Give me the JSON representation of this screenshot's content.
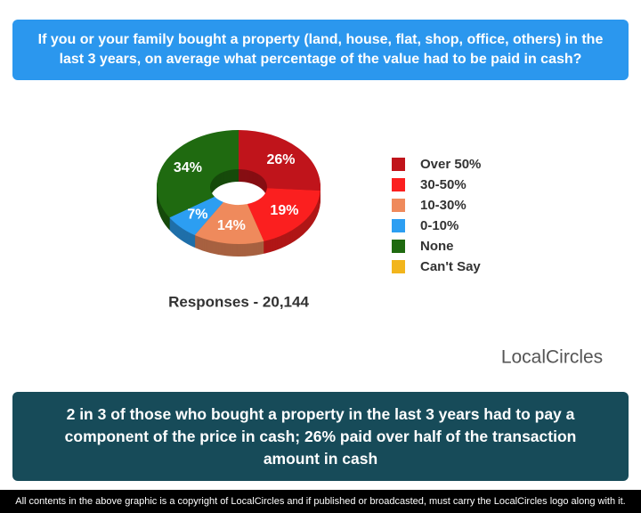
{
  "chart_data": {
    "type": "pie",
    "title": "If you or your family bought a property (land, house, flat, shop, office, others) in the last 3 years, on average what percentage of the value had to be paid in cash?",
    "categories": [
      "Over 50%",
      "30-50%",
      "10-30%",
      "0-10%",
      "None",
      "Can't Say"
    ],
    "values": [
      26,
      19,
      14,
      7,
      34,
      0
    ],
    "value_labels": [
      "26%",
      "19%",
      "14%",
      "7%",
      "34%",
      null
    ],
    "colors": [
      "#c0141b",
      "#fb1f1f",
      "#ef8a5c",
      "#2c9ef2",
      "#1f6a10",
      "#f2b51c"
    ],
    "donut": true,
    "legend": "right",
    "annotation": "Responses - 20,144",
    "logo": "LocalCircles",
    "conclusion": "2 in 3 of those who bought a property in the last 3 years had to pay a component of the price in cash; 26% paid over half of the transaction amount in cash",
    "footer": "All contents in the above graphic is a copyright of LocalCircles and if published or broadcasted, must carry the LocalCircles logo along with it."
  }
}
